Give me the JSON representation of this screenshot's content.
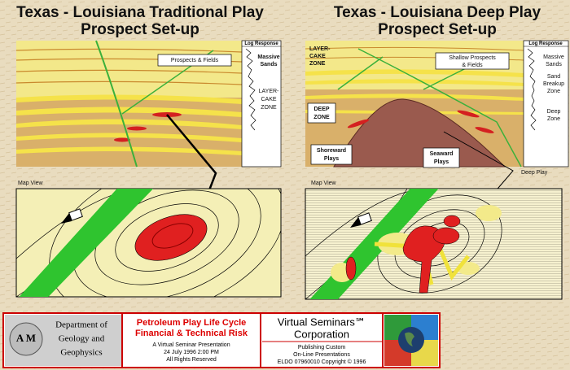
{
  "left": {
    "title": [
      "Texas - Louisiana Traditional Play",
      "Prospect Set-up"
    ],
    "section": {
      "callout": "Prospects & Fields",
      "log_header": "Log Response",
      "log_labels": [
        [
          "Massive",
          "Sands"
        ],
        [
          "LAYER-",
          "CAKE",
          "ZONE"
        ]
      ]
    },
    "map_label": "Map View"
  },
  "right": {
    "title": [
      "Texas - Louisiana Deep Play",
      "Prospect Set-up"
    ],
    "section": {
      "layer_cake": [
        "LAYER-",
        "CAKE",
        "ZONE"
      ],
      "callout": [
        "Shallow Prospects",
        "& Fields"
      ],
      "deep_zone": [
        "DEEP",
        "ZONE"
      ],
      "shoreward": [
        "Shoreward",
        "Plays"
      ],
      "seaward": [
        "Seaward",
        "Plays"
      ],
      "log_header": "Log Response",
      "log_labels": [
        [
          "Massive",
          "Sands"
        ],
        [
          "Sand",
          "Breakup",
          "Zone"
        ],
        [
          "Deep",
          "Zone"
        ]
      ]
    },
    "map_label": "Map View",
    "deep_play": "Deep Play"
  },
  "footer": {
    "logo": "A M",
    "department": [
      "Department of",
      "Geology and",
      "Geophysics"
    ],
    "course": [
      "Petroleum Play Life Cycle",
      "Financial & Technical Risk"
    ],
    "details": [
      "A Virtual Seminar Presentation",
      "24 July 1996  2:00 PM",
      "All Rights Reserved"
    ],
    "company": [
      "Virtual Seminars℠",
      "Corporation"
    ],
    "publisher": [
      "Publishing Custom",
      "On-Line Presentations",
      "ELDO 07960010 Copyright © 1996"
    ]
  }
}
